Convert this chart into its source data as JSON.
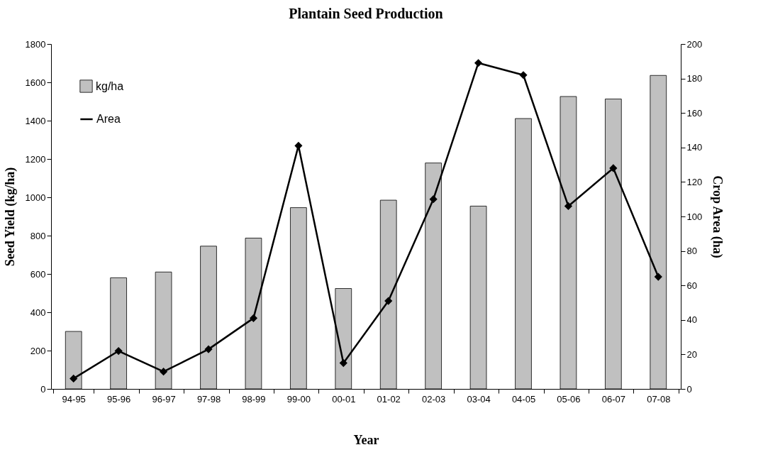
{
  "chart_data": {
    "type": "bar",
    "title": "Plantain  Seed Production",
    "xlabel": "Year",
    "ylabel": "Seed Yield (kg/ha)",
    "y2label": "Crop Area (ha)",
    "categories": [
      "94-95",
      "95-96",
      "96-97",
      "97-98",
      "98-99",
      "99-00",
      "00-01",
      "01-02",
      "02-03",
      "03-04",
      "04-05",
      "05-06",
      "06-07",
      "07-08"
    ],
    "series": [
      {
        "name": "kg/ha",
        "color": "#c0c0c0",
        "values": [
          300,
          580,
          610,
          745,
          787,
          946,
          524,
          985,
          1179,
          954,
          1411,
          1526,
          1513,
          1636
        ]
      },
      {
        "name": "Area",
        "type": "line",
        "axis": "y2",
        "color": "#000000",
        "marker": "diamond",
        "values": [
          6,
          22,
          10,
          23,
          41,
          141,
          15,
          51,
          110,
          189,
          182,
          106,
          128,
          65
        ]
      }
    ],
    "ylim": [
      0,
      1800
    ],
    "yticks": [
      0,
      200,
      400,
      600,
      800,
      1000,
      1200,
      1400,
      1600,
      1800
    ],
    "y2lim": [
      0,
      200
    ],
    "y2ticks": [
      0,
      20,
      40,
      60,
      80,
      100,
      120,
      140,
      160,
      180,
      200
    ],
    "grid": false,
    "legend": "top left"
  }
}
